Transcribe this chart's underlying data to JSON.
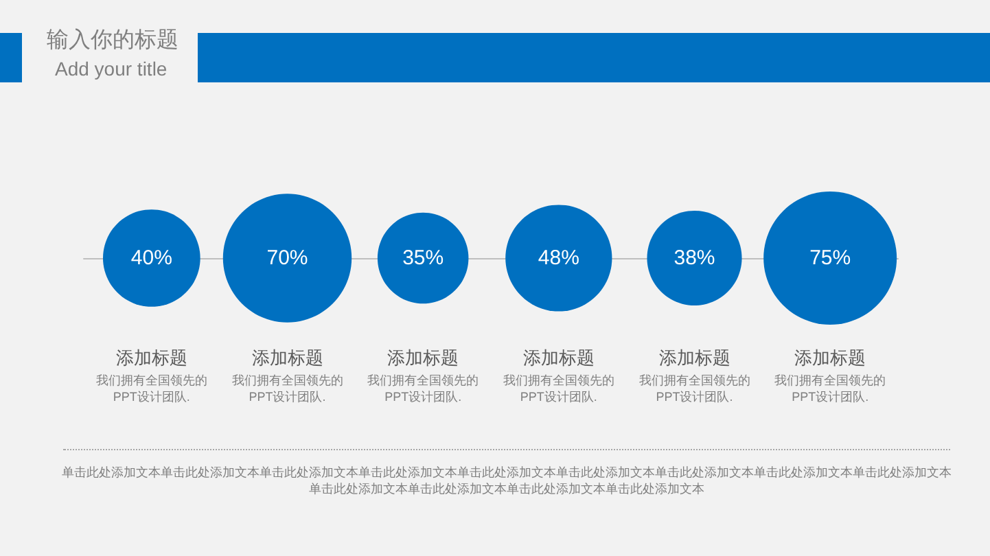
{
  "chart_data": {
    "type": "other",
    "title": "输入你的标题",
    "subtitle": "Add your title",
    "categories": [
      "添加标题",
      "添加标题",
      "添加标题",
      "添加标题",
      "添加标题",
      "添加标题"
    ],
    "values": [
      40,
      70,
      35,
      48,
      38,
      75
    ],
    "value_labels": [
      "40%",
      "70%",
      "35%",
      "48%",
      "38%",
      "75%"
    ],
    "color": "#0070c0",
    "annotations": [
      "我们拥有全国领先的PPT设计团队.",
      "我们拥有全国领先的PPT设计团队.",
      "我们拥有全国领先的PPT设计团队.",
      "我们拥有全国领先的PPT设计团队.",
      "我们拥有全国领先的PPT设计团队.",
      "我们拥有全国领先的PPT设计团队.",
      "单击此处添加文本单击此处添加文本单击此处添加文本单击此处添加文本单击此处添加文本单击此处添加文本单击此处添加文本单击此处添加文本单击此处添加文本单击此处添加文本单击此处添加文本单击此处添加文本单击此处添加文本"
    ]
  }
}
